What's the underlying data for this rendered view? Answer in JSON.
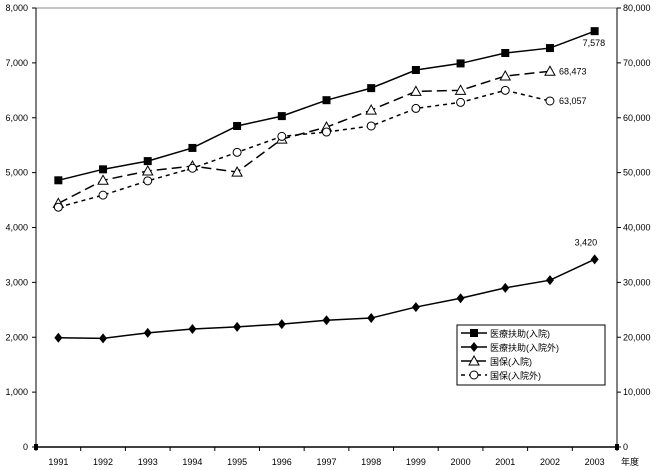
{
  "chart_data": {
    "type": "line",
    "categories": [
      "1991",
      "1992",
      "1993",
      "1994",
      "1995",
      "1996",
      "1997",
      "1998",
      "1999",
      "2000",
      "2001",
      "2002",
      "2003"
    ],
    "xlabel": "年度",
    "left_axis": {
      "ylim": [
        0,
        8000
      ],
      "ticks": [
        "0",
        "1,000",
        "2,000",
        "3,000",
        "4,000",
        "5,000",
        "6,000",
        "7,000",
        "8,000"
      ]
    },
    "right_axis": {
      "ylim": [
        0,
        80000
      ],
      "ticks": [
        "0",
        "10,000",
        "20,000",
        "30,000",
        "40,000",
        "50,000",
        "60,000",
        "70,000",
        "80,000"
      ]
    },
    "grid": false,
    "legend_position": "right-center",
    "series": [
      {
        "name": "医療扶助(入院)",
        "axis": "left",
        "marker": "square",
        "dash": "solid",
        "values": [
          4860,
          5060,
          5210,
          5450,
          5850,
          6030,
          6320,
          6540,
          6870,
          6990,
          7180,
          7270,
          7578
        ],
        "end_label": "7,578"
      },
      {
        "name": "医療扶助(入院外)",
        "axis": "left",
        "marker": "diamond",
        "dash": "solid",
        "values": [
          1990,
          1980,
          2080,
          2150,
          2190,
          2240,
          2310,
          2350,
          2550,
          2710,
          2900,
          3040,
          3420
        ],
        "end_label": "3,420"
      },
      {
        "name": "国保(入院)",
        "axis": "right",
        "marker": "triangle",
        "dash": "long",
        "values": [
          44400,
          48600,
          50300,
          51200,
          50100,
          56100,
          58300,
          61400,
          64800,
          65000,
          67600,
          68473,
          null
        ],
        "end_label": "68,473"
      },
      {
        "name": "国保(入院外)",
        "axis": "right",
        "marker": "circle",
        "dash": "short",
        "values": [
          43700,
          45900,
          48500,
          50800,
          53700,
          56600,
          57400,
          58500,
          61700,
          62800,
          65000,
          63057,
          null
        ],
        "end_label": "63,057"
      }
    ]
  }
}
